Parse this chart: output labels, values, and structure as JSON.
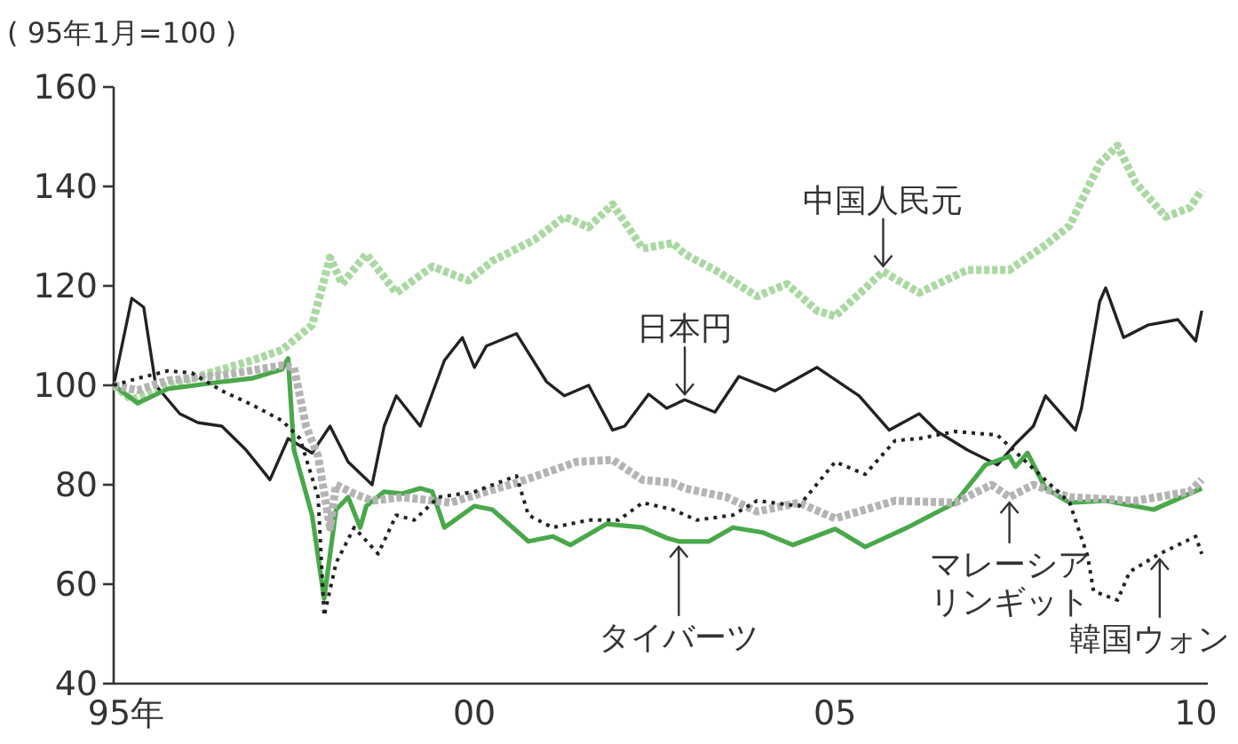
{
  "chart_data": {
    "type": "line",
    "ylabel": "( 95年1月=100 )",
    "xlim": [
      "1995-01",
      "2010-03"
    ],
    "ylim": [
      40,
      160
    ],
    "yticks": [
      40,
      60,
      80,
      100,
      120,
      140,
      160
    ],
    "xticks": [
      {
        "value": "1995",
        "label": "95年"
      },
      {
        "value": "2000",
        "label": "00"
      },
      {
        "value": "2005",
        "label": "05"
      },
      {
        "value": "2010",
        "label": "10"
      }
    ],
    "series": [
      {
        "color": "#a9d9a1",
        "line_style": "dotted",
        "x": [
          "1995-01",
          "1995-04",
          "1995-10",
          "1996-07",
          "1996-12",
          "1997-05",
          "1997-10",
          "1998-01",
          "1998-03",
          "1998-07",
          "1998-12",
          "1999-06",
          "1999-12",
          "2000-04",
          "2000-11",
          "2001-04",
          "2001-08",
          "2001-12",
          "2002-05",
          "2002-10",
          "2002-12",
          "2003-05",
          "2003-12",
          "2004-05",
          "2004-10",
          "2005-01",
          "2005-09",
          "2006-03",
          "2006-11",
          "2007-06",
          "2007-12",
          "2008-04",
          "2008-09",
          "2008-12",
          "2009-03",
          "2009-08",
          "2009-12",
          "2010-02"
        ],
        "values": [
          100,
          97.1,
          100,
          103.2,
          105,
          107.1,
          112.1,
          125.7,
          120.4,
          126.4,
          118.6,
          123.9,
          121.1,
          125,
          129.3,
          133.9,
          131.8,
          136.4,
          127.5,
          128.6,
          126.4,
          123.2,
          117.9,
          120.4,
          115,
          113.9,
          122.9,
          118.6,
          123.2,
          123.2,
          128.2,
          132.1,
          144.6,
          148.2,
          140.7,
          133.9,
          135.7,
          139.3
        ]
      },
      {
        "color": "#222222",
        "line_style": "solid",
        "x": [
          "1995-01",
          "1995-04",
          "1995-06",
          "1995-08",
          "1995-12",
          "1996-03",
          "1996-07",
          "1996-11",
          "1997-03",
          "1997-06",
          "1997-10",
          "1998-01",
          "1998-04",
          "1998-08",
          "1998-10",
          "1998-12",
          "1999-04",
          "1999-08",
          "1999-11",
          "2000-01",
          "2000-03",
          "2000-08",
          "2001-01",
          "2001-04",
          "2001-08",
          "2001-12",
          "2002-02",
          "2002-06",
          "2002-09",
          "2002-12",
          "2003-05",
          "2003-09",
          "2004-03",
          "2004-10",
          "2005-05",
          "2005-10",
          "2006-03",
          "2006-06",
          "2006-11",
          "2007-04",
          "2007-07",
          "2007-10",
          "2007-12",
          "2008-05",
          "2008-06",
          "2008-09",
          "2008-10",
          "2009-01",
          "2009-05",
          "2009-10",
          "2010-01",
          "2010-02"
        ],
        "values": [
          100,
          117.5,
          115.7,
          100,
          94.3,
          92.5,
          91.8,
          87,
          81,
          89.3,
          86.4,
          91.8,
          84.6,
          80,
          91.8,
          97.9,
          91.8,
          105,
          109.6,
          103.6,
          107.9,
          110.4,
          100.7,
          97.9,
          100,
          91,
          91.8,
          98.2,
          95.4,
          97.1,
          94.6,
          101.8,
          98.9,
          103.6,
          97.9,
          91,
          94.3,
          90.7,
          87,
          84,
          88.2,
          91.8,
          97.9,
          91,
          95.4,
          116.8,
          119.6,
          109.6,
          112.1,
          113.2,
          108.9,
          115
        ]
      },
      {
        "color": "#4aa84a",
        "line_style": "solid",
        "x": [
          "1995-01",
          "1995-05",
          "1995-10",
          "1996-07",
          "1996-12",
          "1997-05",
          "1997-06",
          "1997-07",
          "1997-10",
          "1997-12",
          "1998-02",
          "1998-04",
          "1998-06",
          "1998-07",
          "1998-10",
          "1999-01",
          "1999-04",
          "1999-06",
          "1999-08",
          "2000-01",
          "2000-04",
          "2000-10",
          "2001-02",
          "2001-05",
          "2001-11",
          "2002-05",
          "2002-09",
          "2002-11",
          "2003-04",
          "2003-08",
          "2004-01",
          "2004-06",
          "2005-01",
          "2005-06",
          "2006-01",
          "2006-09",
          "2007-02",
          "2007-06",
          "2007-07",
          "2007-09",
          "2007-12",
          "2008-04",
          "2008-10",
          "2009-06",
          "2010-02"
        ],
        "values": [
          100,
          96.4,
          99.3,
          100.7,
          101.4,
          103.2,
          105.4,
          87,
          73.9,
          57.1,
          75,
          77.5,
          71.4,
          75.7,
          78.6,
          78.2,
          79.3,
          78.6,
          71.4,
          75.7,
          75,
          68.6,
          69.6,
          67.9,
          72.1,
          71.4,
          69.3,
          68.6,
          68.6,
          71.4,
          70.4,
          67.9,
          71.1,
          67.5,
          71.4,
          76.4,
          84,
          85.7,
          83.6,
          86.4,
          79.3,
          76.4,
          76.8,
          75,
          79.3
        ]
      },
      {
        "color": "#b4b4b4",
        "line_style": "dotted",
        "x": [
          "1995-01",
          "1995-05",
          "1995-10",
          "1996-07",
          "1996-12",
          "1997-05",
          "1997-07",
          "1997-09",
          "1997-11",
          "1998-01",
          "1998-02",
          "1998-05",
          "1998-08",
          "1999-01",
          "1999-09",
          "2000-03",
          "2000-08",
          "2001-02",
          "2001-06",
          "2001-12",
          "2002-05",
          "2002-10",
          "2002-12",
          "2003-07",
          "2003-12",
          "2004-07",
          "2005-01",
          "2005-11",
          "2006-09",
          "2007-03",
          "2007-06",
          "2007-10",
          "2008-04",
          "2009-03",
          "2009-12",
          "2010-02"
        ],
        "values": [
          100,
          99,
          101,
          102,
          103,
          104,
          103.6,
          91.8,
          85.7,
          71.4,
          80,
          78.2,
          76.8,
          77.5,
          76.4,
          78.6,
          80.4,
          82.9,
          84.6,
          85,
          81,
          80.4,
          79.3,
          77.5,
          74.6,
          76.4,
          73.2,
          76.8,
          76.4,
          80,
          77.5,
          80,
          77.5,
          76.8,
          78.6,
          81
        ]
      },
      {
        "color": "#222222",
        "line_style": "dotted",
        "x": [
          "1995-01",
          "1995-05",
          "1995-10",
          "1996-02",
          "1996-07",
          "1996-12",
          "1997-05",
          "1997-08",
          "1997-11",
          "1997-12",
          "1998-02",
          "1998-05",
          "1998-09",
          "1998-12",
          "1999-03",
          "1999-07",
          "2000-01",
          "2000-08",
          "2000-10",
          "2001-02",
          "2001-08",
          "2002-01",
          "2002-05",
          "2002-10",
          "2003-02",
          "2003-08",
          "2003-12",
          "2004-07",
          "2005-01",
          "2005-06",
          "2005-11",
          "2006-03",
          "2006-09",
          "2007-04",
          "2007-11",
          "2008-04",
          "2008-07",
          "2008-08",
          "2008-12",
          "2009-02",
          "2009-07",
          "2010-01",
          "2010-02"
        ],
        "values": [
          100,
          101.4,
          102.9,
          102.5,
          98.9,
          96.1,
          92.9,
          89.3,
          77.5,
          53.6,
          64.3,
          71.4,
          66.1,
          73.9,
          72.9,
          77.5,
          78.6,
          81.8,
          73.9,
          71.4,
          72.9,
          72.9,
          76.4,
          75,
          72.9,
          73.9,
          76.8,
          75.7,
          84.6,
          82.1,
          88.9,
          89.3,
          90.7,
          90,
          82.1,
          76.4,
          65.7,
          58.6,
          56.8,
          62.5,
          66.1,
          69.6,
          66.1
        ]
      }
    ],
    "annotations": [
      {
        "text": "中国人民元",
        "x": "2005-09",
        "y": 122.9
      },
      {
        "text": "日本円",
        "x": "2002-12",
        "y": 97.1
      },
      {
        "text": "タイバーツ",
        "x": "2002-11",
        "y": 68.6
      },
      {
        "text": "マレーシアリンギット",
        "x": "2007-06",
        "y": 77.5
      },
      {
        "text": "韓国ウォン",
        "x": "2009-07",
        "y": 66.1
      }
    ]
  }
}
